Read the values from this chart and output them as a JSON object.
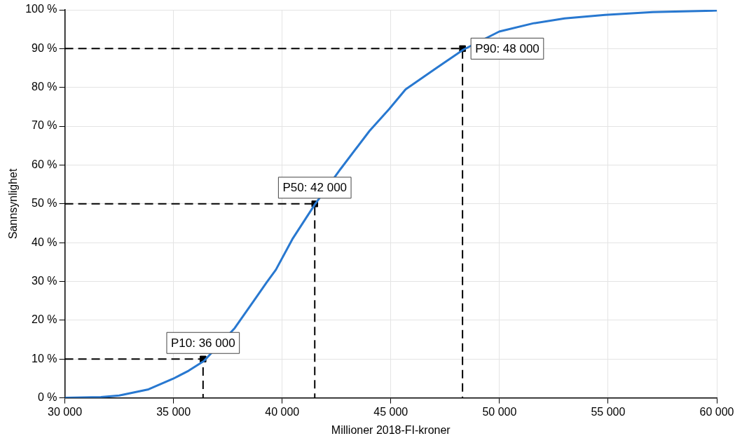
{
  "chart_data": {
    "type": "line",
    "xlabel": "Millioner 2018-FI-kroner",
    "ylabel": "Sannsynlighet",
    "xlim": [
      30000,
      60000
    ],
    "ylim": [
      0,
      100
    ],
    "xticks": [
      {
        "value": 30000,
        "label": "30 000"
      },
      {
        "value": 35000,
        "label": "35 000"
      },
      {
        "value": 40000,
        "label": "40 000"
      },
      {
        "value": 45000,
        "label": "45 000"
      },
      {
        "value": 50000,
        "label": "50 000"
      },
      {
        "value": 55000,
        "label": "55 000"
      },
      {
        "value": 60000,
        "label": "60 000"
      }
    ],
    "yticks": [
      {
        "value": 0,
        "label": "0 %"
      },
      {
        "value": 10,
        "label": "10 %"
      },
      {
        "value": 20,
        "label": "20 %"
      },
      {
        "value": 30,
        "label": "30 %"
      },
      {
        "value": 40,
        "label": "40 %"
      },
      {
        "value": 50,
        "label": "50 %"
      },
      {
        "value": 60,
        "label": "60 %"
      },
      {
        "value": 70,
        "label": "70 %"
      },
      {
        "value": 80,
        "label": "80 %"
      },
      {
        "value": 90,
        "label": "90 %"
      },
      {
        "value": 100,
        "label": "100 %"
      }
    ],
    "grid": true,
    "legend": false,
    "marker": "none",
    "series": [
      {
        "color": "#2878d0",
        "x": [
          30000,
          31660,
          32500,
          33850,
          34970,
          35700,
          36400,
          37820,
          38820,
          39280,
          39710,
          40470,
          41500,
          42690,
          44020,
          44920,
          45680,
          47100,
          48330,
          49990,
          51540,
          53000,
          54860,
          57050,
          60000
        ],
        "values": [
          0,
          0.2,
          0.6,
          2.2,
          4.9,
          7,
          9.5,
          18,
          26,
          29.7,
          33,
          40.9,
          49.8,
          59,
          68.8,
          74.4,
          79.5,
          85,
          89.7,
          94.4,
          96.5,
          97.8,
          98.7,
          99.4,
          99.8
        ]
      },
      {
        "color": "#000000",
        "line_style": "dashed",
        "x": [
          30000,
          36360,
          36360
        ],
        "values": [
          10,
          10,
          0
        ]
      },
      {
        "color": "#000000",
        "line_style": "dashed",
        "x": [
          30000,
          41500,
          41500
        ],
        "values": [
          50,
          50,
          0
        ]
      },
      {
        "color": "#000000",
        "line_style": "dashed",
        "x": [
          30000,
          48300,
          48300
        ],
        "values": [
          90,
          90,
          0
        ]
      },
      {
        "type": "scatter",
        "color": "#000000",
        "marker": "square",
        "x": [
          36360,
          41500,
          48300
        ],
        "values": [
          10,
          50,
          90
        ]
      }
    ],
    "annotations": [
      {
        "text": "P10: 36 000",
        "x": 36360,
        "y": 10
      },
      {
        "text": "P50: 42 000",
        "x": 41500,
        "y": 50
      },
      {
        "text": "P90: 48 000",
        "x": 48300,
        "y": 90
      }
    ]
  }
}
